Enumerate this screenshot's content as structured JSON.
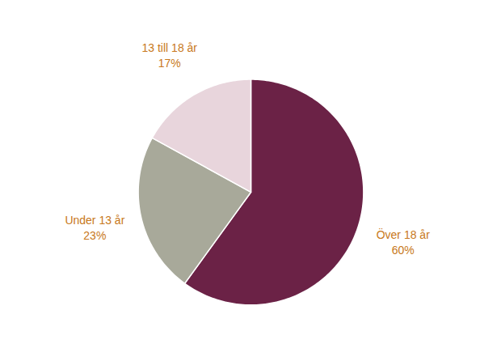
{
  "chart_data": {
    "type": "pie",
    "categories": [
      "Över 18 år",
      "Under 13 år",
      "13 till 18 år"
    ],
    "values": [
      60,
      23,
      17
    ],
    "value_labels": [
      "60%",
      "23%",
      "17%"
    ],
    "colors": [
      "#6B2246",
      "#A8A99A",
      "#E8D5DC"
    ],
    "data_labels": true
  }
}
